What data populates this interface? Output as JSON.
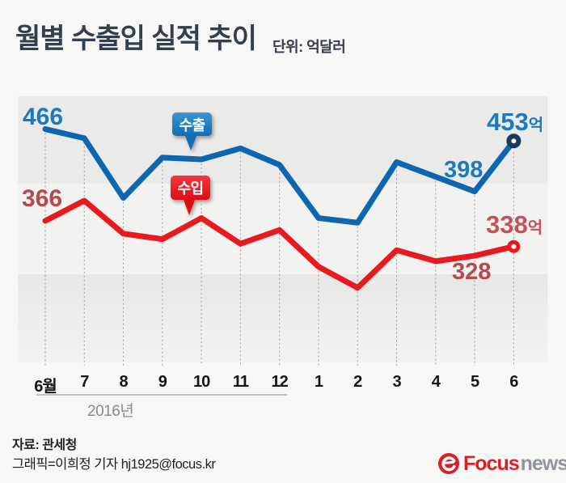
{
  "title": "월별 수출입 실적 추이",
  "unit_label": "단위: 억달러",
  "chart_data": {
    "type": "line",
    "categories": [
      "6월",
      "7",
      "8",
      "9",
      "10",
      "11",
      "12",
      "1",
      "2",
      "3",
      "4",
      "5",
      "6"
    ],
    "year_label": "2016년",
    "grid": "vertical-dashed",
    "series": [
      {
        "name": "수출",
        "color": "#0e66b0",
        "marker_ring_color": "#173a5e",
        "values": [
          466,
          456,
          391,
          435,
          433,
          445,
          427,
          369,
          364,
          430,
          414,
          398,
          453
        ]
      },
      {
        "name": "수입",
        "color": "#e8191f",
        "marker_ring_color": "#e8191f",
        "values": [
          366,
          388,
          352,
          346,
          369,
          341,
          356,
          316,
          293,
          334,
          322,
          328,
          338
        ]
      }
    ],
    "annotations": {
      "export_first": "466",
      "import_first": "366",
      "export_may": "398",
      "import_may": "328",
      "export_last": "453",
      "import_last": "338",
      "unit_suffix": "억"
    }
  },
  "footer": {
    "source": "자료: 관세청",
    "credit": "그래픽=이희정 기자 hj1925@focus.kr",
    "logo": {
      "word1": "Focus",
      "word2": "news"
    }
  }
}
